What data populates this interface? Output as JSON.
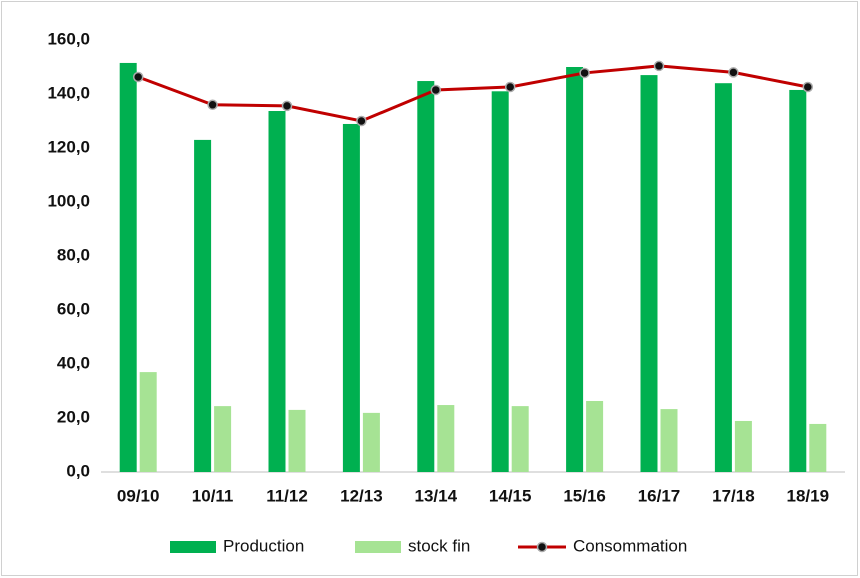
{
  "chart_data": {
    "type": "bar-line",
    "categories": [
      "09/10",
      "10/11",
      "11/12",
      "12/13",
      "13/14",
      "14/15",
      "15/16",
      "16/17",
      "17/18",
      "18/19"
    ],
    "series": [
      {
        "name": "Production",
        "type": "bar",
        "color": "#00b050",
        "values": [
          151.5,
          123,
          133.7,
          128.9,
          144.8,
          141,
          150,
          147,
          144,
          141.5
        ]
      },
      {
        "name": "stock fin",
        "type": "bar",
        "color": "#a6e394",
        "values": [
          37,
          24.4,
          23,
          21.9,
          24.8,
          24.4,
          26.3,
          23.3,
          18.9,
          17.8
        ]
      },
      {
        "name": "Consommation",
        "type": "line",
        "color": "#c00000",
        "values": [
          146.3,
          136,
          135.6,
          130,
          141.5,
          142.6,
          147.8,
          150.4,
          148,
          142.6
        ]
      }
    ],
    "ylim": [
      0,
      160
    ],
    "yticks": [
      {
        "value": 0,
        "label": "0,0"
      },
      {
        "value": 20,
        "label": "20,0"
      },
      {
        "value": 40,
        "label": "40,0"
      },
      {
        "value": 60,
        "label": "60,0"
      },
      {
        "value": 80,
        "label": "80,0"
      },
      {
        "value": 100,
        "label": "100,0"
      },
      {
        "value": 120,
        "label": "120,0"
      },
      {
        "value": 140,
        "label": "140,0"
      },
      {
        "value": 160,
        "label": "160,0"
      }
    ],
    "grid": false,
    "legend": "bottom"
  }
}
